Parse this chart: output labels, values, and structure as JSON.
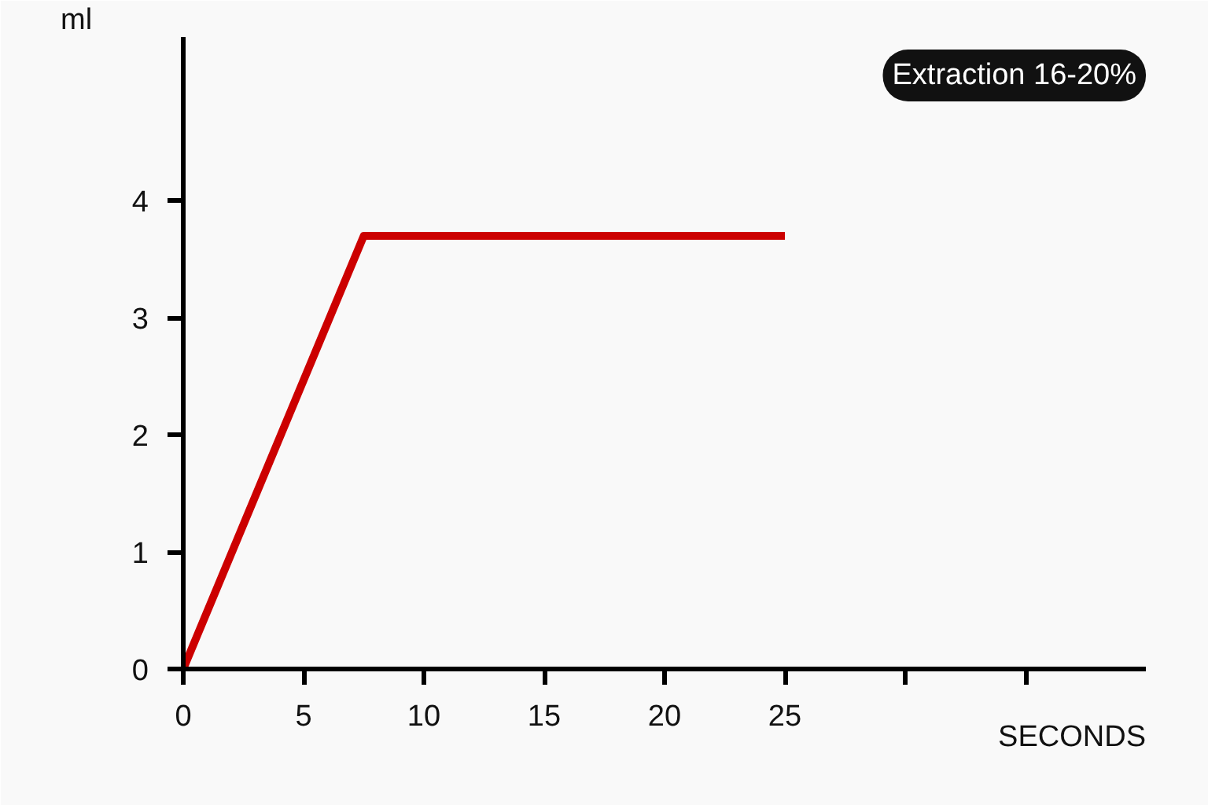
{
  "chart_data": {
    "type": "line",
    "xlabel": "SECONDS",
    "ylabel": "ml",
    "annotations": [
      "Extraction 16-20%"
    ],
    "series": [
      {
        "color": "#cc0000",
        "x": [
          0,
          7.5,
          25
        ],
        "values": [
          0,
          3.7,
          3.7
        ]
      }
    ],
    "xlim": [
      0,
      40
    ],
    "ylim": [
      0,
      5.4
    ],
    "xticks": [
      0,
      5,
      10,
      15,
      20,
      25,
      {
        "value": 30,
        "label": null
      },
      {
        "value": 35,
        "label": null
      }
    ],
    "yticks": [
      0,
      1,
      2,
      3,
      4
    ],
    "grid": false,
    "marker": "none",
    "line_style": "solid"
  }
}
